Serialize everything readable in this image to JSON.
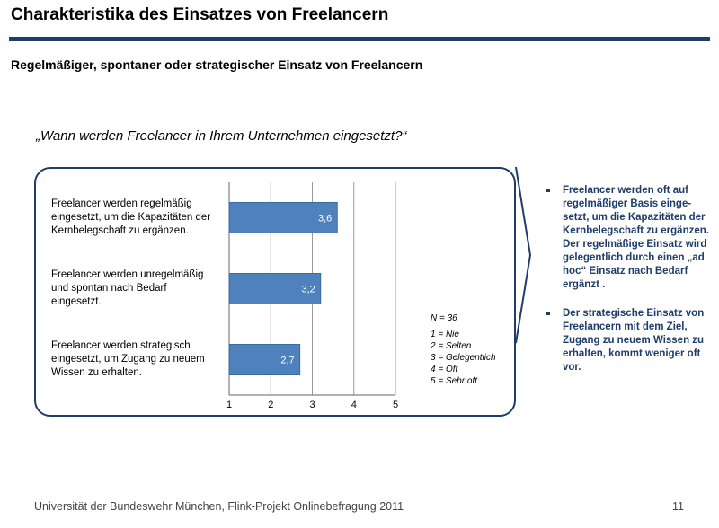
{
  "header": {
    "title": "Charakteristika des Einsatzes von Freelancern",
    "subtitle": "Regelmäßiger, spontaner oder strategischer Einsatz von Freelancern"
  },
  "question": "„Wann werden Freelancer in Ihrem Unternehmen eingesetzt?“",
  "legend": {
    "n": "N = 36",
    "items": [
      "1 = Nie",
      "2 = Selten",
      "3 = Gelegentlich",
      "4 = Oft",
      "5 = Sehr oft"
    ]
  },
  "bullets": [
    "Freelancer werden oft auf regelmäßiger Basis einge-setzt, um die Kapazitäten der Kernbelegschaft zu ergänzen.  Der regelmäßige Einsatz wird gelegentlich durch einen „ad hoc“ Einsatz nach Bedarf ergänzt .",
    "Der strategische Einsatz von Freelancern mit dem Ziel, Zugang zu neuem Wissen zu erhalten, kommt weniger oft vor."
  ],
  "footer": {
    "text": "Universität der Bundeswehr München, Flink-Projekt Onlinebefragung  2011",
    "page": "11"
  },
  "colors": {
    "bar": "#4f81bd",
    "bar_border": "#3a6aa0",
    "frame": "#1f3d6b",
    "rule": "#1f3d6b",
    "grid": "#999999"
  },
  "chart_data": {
    "type": "bar",
    "orientation": "horizontal",
    "categories": [
      [
        "Freelancer werden regelmäßig",
        "eingesetzt, um die Kapazitäten der",
        "Kernbelegschaft zu ergänzen."
      ],
      [
        "Freelancer werden unregelmäßig",
        "und spontan nach Bedarf",
        "eingesetzt."
      ],
      [
        "Freelancer werden strategisch",
        "eingesetzt, um Zugang zu neuem",
        "Wissen zu erhalten."
      ]
    ],
    "values": [
      3.6,
      3.2,
      2.7
    ],
    "value_labels": [
      "3,6",
      "3,2",
      "2,7"
    ],
    "xlim": [
      1,
      5
    ],
    "xticks": [
      "1",
      "2",
      "3",
      "4",
      "5"
    ],
    "grid": true
  }
}
